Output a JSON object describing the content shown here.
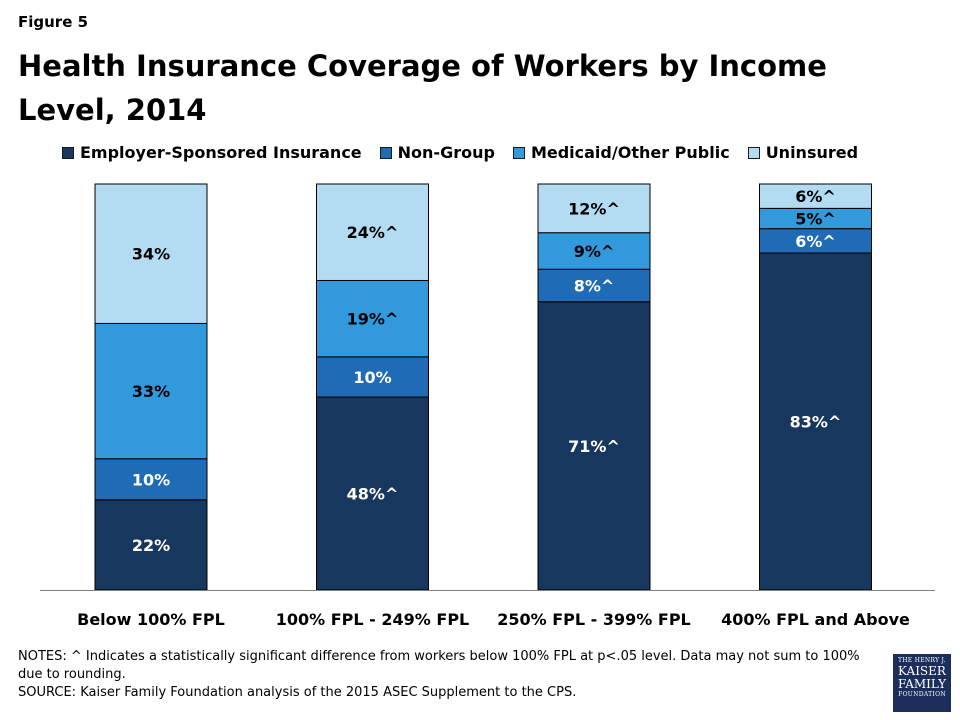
{
  "figure_label": "Figure 5",
  "chart_data": {
    "type": "bar",
    "stacked": true,
    "title": "Health Insurance Coverage of Workers by Income Level, 2014",
    "categories": [
      "Below 100% FPL",
      "100% FPL - 249% FPL",
      "250% FPL - 399% FPL",
      "400% FPL and Above"
    ],
    "series": [
      {
        "name": "Employer-Sponsored Insurance",
        "color": "#17375e",
        "values": [
          22,
          48,
          71,
          83
        ],
        "labels": [
          "22%",
          "48%^",
          "71%^",
          "83%^"
        ]
      },
      {
        "name": "Non-Group",
        "color": "#1f6bb5",
        "values": [
          10,
          10,
          8,
          6
        ],
        "labels": [
          "10%",
          "10%",
          "8%^",
          "6%^"
        ]
      },
      {
        "name": "Medicaid/Other Public",
        "color": "#3399dd",
        "values": [
          33,
          19,
          9,
          5
        ],
        "labels": [
          "33%",
          "19%^",
          "9%^",
          "5%^"
        ]
      },
      {
        "name": "Uninsured",
        "color": "#b3dcf2",
        "values": [
          34,
          24,
          12,
          6
        ],
        "labels": [
          "34%",
          "24%^",
          "12%^",
          "6%^"
        ]
      }
    ],
    "ylim": [
      0,
      100
    ],
    "xlabel": "",
    "ylabel": "",
    "legend": "top"
  },
  "notes": "NOTES: ^ Indicates a statistically significant difference from workers below 100% FPL at p<.05 level. Data may not sum to 100% due to rounding.",
  "source": "SOURCE: Kaiser Family Foundation analysis of the 2015 ASEC Supplement to the CPS.",
  "logo": {
    "line1": "THE HENRY J.",
    "line2": "KAISER",
    "line3": "FAMILY",
    "line4": "FOUNDATION"
  }
}
